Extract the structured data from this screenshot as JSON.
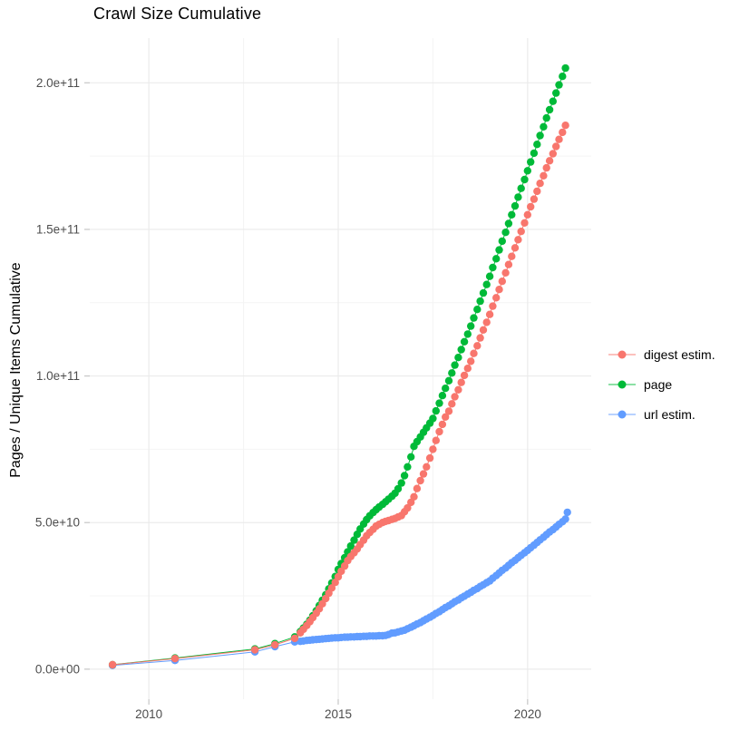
{
  "title": "Crawl Size Cumulative",
  "axes": {
    "y_label": "Pages / Unique Items Cumulative",
    "x_tick_labels": [
      "2010",
      "2015",
      "2020"
    ],
    "y_tick_labels": [
      "0.0e+00",
      "5.0e+10",
      "1.0e+11",
      "1.5e+11",
      "2.0e+11"
    ]
  },
  "legend": {
    "position": "right-center",
    "items": [
      {
        "label": "digest estim.",
        "color": "#F8766D"
      },
      {
        "label": "page",
        "color": "#00BA38"
      },
      {
        "label": "url estim.",
        "color": "#619CFF"
      }
    ]
  },
  "chart_data": {
    "type": "scatter",
    "connected": true,
    "title": "Crawl Size Cumulative",
    "xlabel": "",
    "ylabel": "Pages / Unique Items Cumulative",
    "x_unit": "year (decimal)",
    "value_unit": "1e9 items (billions); e.g. 50 = 5.0e+10",
    "xlim": [
      2008.44,
      2021.68
    ],
    "ylim_e9": [
      -10.25,
      215.25
    ],
    "x_ticks": [
      {
        "v": 2010,
        "label": "2010"
      },
      {
        "v": 2015,
        "label": "2015"
      },
      {
        "v": 2020,
        "label": "2020"
      }
    ],
    "y_ticks": [
      {
        "v": 0,
        "label": "0.0e+00"
      },
      {
        "v": 50,
        "label": "5.0e+10"
      },
      {
        "v": 100,
        "label": "1.0e+11"
      },
      {
        "v": 150,
        "label": "1.5e+11"
      },
      {
        "v": 200,
        "label": "2.0e+11"
      }
    ],
    "x_minor": [
      2012.5,
      2017.5
    ],
    "y_minor": [
      25,
      75,
      125,
      175
    ],
    "grid": true,
    "series": [
      {
        "name": "url estim.",
        "color": "#619CFF",
        "points": [
          [
            2009.04,
            1.3
          ],
          [
            2010.69,
            3.0
          ],
          [
            2012.8,
            5.9
          ],
          [
            2013.33,
            7.7
          ],
          [
            2013.85,
            9.3
          ],
          [
            2014.0,
            9.5
          ],
          [
            2014.08,
            9.6
          ],
          [
            2014.17,
            9.8
          ],
          [
            2014.25,
            9.9
          ],
          [
            2014.33,
            10.0
          ],
          [
            2014.42,
            10.1
          ],
          [
            2014.5,
            10.2
          ],
          [
            2014.58,
            10.3
          ],
          [
            2014.67,
            10.4
          ],
          [
            2014.75,
            10.5
          ],
          [
            2014.83,
            10.6
          ],
          [
            2014.92,
            10.7
          ],
          [
            2015.0,
            10.7
          ],
          [
            2015.08,
            10.8
          ],
          [
            2015.17,
            10.9
          ],
          [
            2015.25,
            10.9
          ],
          [
            2015.33,
            11.0
          ],
          [
            2015.42,
            11.0
          ],
          [
            2015.5,
            11.1
          ],
          [
            2015.58,
            11.1
          ],
          [
            2015.67,
            11.2
          ],
          [
            2015.75,
            11.2
          ],
          [
            2015.83,
            11.3
          ],
          [
            2015.92,
            11.3
          ],
          [
            2016.0,
            11.3
          ],
          [
            2016.08,
            11.4
          ],
          [
            2016.17,
            11.4
          ],
          [
            2016.25,
            11.5
          ],
          [
            2016.33,
            11.8
          ],
          [
            2016.42,
            12.3
          ],
          [
            2016.5,
            12.4
          ],
          [
            2016.58,
            12.7
          ],
          [
            2016.67,
            13.0
          ],
          [
            2016.75,
            13.3
          ],
          [
            2016.83,
            13.8
          ],
          [
            2016.92,
            14.3
          ],
          [
            2017.0,
            14.8
          ],
          [
            2017.08,
            15.4
          ],
          [
            2017.17,
            15.9
          ],
          [
            2017.25,
            16.5
          ],
          [
            2017.33,
            17.1
          ],
          [
            2017.42,
            17.7
          ],
          [
            2017.5,
            18.3
          ],
          [
            2017.58,
            19.0
          ],
          [
            2017.67,
            19.6
          ],
          [
            2017.75,
            20.3
          ],
          [
            2017.83,
            21.0
          ],
          [
            2017.92,
            21.6
          ],
          [
            2018.0,
            22.3
          ],
          [
            2018.08,
            23.0
          ],
          [
            2018.17,
            23.6
          ],
          [
            2018.25,
            24.3
          ],
          [
            2018.33,
            24.9
          ],
          [
            2018.42,
            25.6
          ],
          [
            2018.5,
            26.2
          ],
          [
            2018.58,
            26.9
          ],
          [
            2018.67,
            27.5
          ],
          [
            2018.75,
            28.2
          ],
          [
            2018.83,
            28.8
          ],
          [
            2018.92,
            29.5
          ],
          [
            2019.0,
            30.1
          ],
          [
            2019.08,
            31.0
          ],
          [
            2019.17,
            31.9
          ],
          [
            2019.25,
            32.8
          ],
          [
            2019.33,
            33.7
          ],
          [
            2019.42,
            34.5
          ],
          [
            2019.5,
            35.4
          ],
          [
            2019.58,
            36.3
          ],
          [
            2019.67,
            37.1
          ],
          [
            2019.75,
            38.0
          ],
          [
            2019.83,
            38.8
          ],
          [
            2019.92,
            39.7
          ],
          [
            2020.0,
            40.5
          ],
          [
            2020.08,
            41.4
          ],
          [
            2020.17,
            42.3
          ],
          [
            2020.25,
            43.2
          ],
          [
            2020.33,
            44.1
          ],
          [
            2020.42,
            45.0
          ],
          [
            2020.5,
            45.9
          ],
          [
            2020.58,
            46.8
          ],
          [
            2020.67,
            47.6
          ],
          [
            2020.75,
            48.5
          ],
          [
            2020.83,
            49.4
          ],
          [
            2020.92,
            50.3
          ],
          [
            2021.0,
            51.2
          ],
          [
            2021.05,
            53.5
          ]
        ]
      },
      {
        "name": "page",
        "color": "#00BA38",
        "points": [
          [
            2009.04,
            1.5
          ],
          [
            2010.69,
            3.8
          ],
          [
            2012.8,
            6.9
          ],
          [
            2013.33,
            8.7
          ],
          [
            2013.85,
            11.0
          ],
          [
            2014.0,
            12.8
          ],
          [
            2014.08,
            14.0
          ],
          [
            2014.17,
            15.3
          ],
          [
            2014.25,
            16.7
          ],
          [
            2014.33,
            18.2
          ],
          [
            2014.42,
            19.9
          ],
          [
            2014.5,
            21.7
          ],
          [
            2014.58,
            23.5
          ],
          [
            2014.67,
            25.4
          ],
          [
            2014.75,
            27.4
          ],
          [
            2014.83,
            29.4
          ],
          [
            2014.92,
            31.6
          ],
          [
            2015.0,
            34.0
          ],
          [
            2015.08,
            36.0
          ],
          [
            2015.17,
            38.0
          ],
          [
            2015.25,
            40.0
          ],
          [
            2015.33,
            42.0
          ],
          [
            2015.42,
            44.0
          ],
          [
            2015.5,
            46.0
          ],
          [
            2015.58,
            47.8
          ],
          [
            2015.67,
            49.5
          ],
          [
            2015.75,
            51.0
          ],
          [
            2015.83,
            52.3
          ],
          [
            2015.92,
            53.4
          ],
          [
            2016.0,
            54.4
          ],
          [
            2016.08,
            55.3
          ],
          [
            2016.17,
            56.2
          ],
          [
            2016.25,
            57.1
          ],
          [
            2016.33,
            58.0
          ],
          [
            2016.42,
            59.0
          ],
          [
            2016.5,
            60.0
          ],
          [
            2016.58,
            61.5
          ],
          [
            2016.67,
            63.5
          ],
          [
            2016.75,
            66.0
          ],
          [
            2016.83,
            69.0
          ],
          [
            2016.92,
            72.4
          ],
          [
            2017.0,
            76.0
          ],
          [
            2017.08,
            77.6
          ],
          [
            2017.17,
            79.2
          ],
          [
            2017.25,
            80.8
          ],
          [
            2017.33,
            82.3
          ],
          [
            2017.42,
            83.9
          ],
          [
            2017.5,
            85.5
          ],
          [
            2017.58,
            88.1
          ],
          [
            2017.67,
            90.7
          ],
          [
            2017.75,
            93.3
          ],
          [
            2017.83,
            95.8
          ],
          [
            2017.92,
            98.4
          ],
          [
            2018.0,
            101.0
          ],
          [
            2018.08,
            103.7
          ],
          [
            2018.17,
            106.3
          ],
          [
            2018.25,
            109.0
          ],
          [
            2018.33,
            111.7
          ],
          [
            2018.42,
            114.3
          ],
          [
            2018.5,
            117.0
          ],
          [
            2018.58,
            119.8
          ],
          [
            2018.67,
            122.7
          ],
          [
            2018.75,
            125.5
          ],
          [
            2018.83,
            128.3
          ],
          [
            2018.92,
            131.2
          ],
          [
            2019.0,
            134.0
          ],
          [
            2019.08,
            137.0
          ],
          [
            2019.17,
            140.0
          ],
          [
            2019.25,
            143.0
          ],
          [
            2019.33,
            146.0
          ],
          [
            2019.42,
            149.0
          ],
          [
            2019.5,
            152.0
          ],
          [
            2019.58,
            155.0
          ],
          [
            2019.67,
            158.0
          ],
          [
            2019.75,
            161.0
          ],
          [
            2019.83,
            164.0
          ],
          [
            2019.92,
            167.0
          ],
          [
            2020.0,
            170.0
          ],
          [
            2020.08,
            173.0
          ],
          [
            2020.17,
            176.0
          ],
          [
            2020.25,
            179.0
          ],
          [
            2020.33,
            182.0
          ],
          [
            2020.42,
            185.0
          ],
          [
            2020.5,
            188.0
          ],
          [
            2020.58,
            190.8
          ],
          [
            2020.67,
            193.7
          ],
          [
            2020.75,
            196.5
          ],
          [
            2020.83,
            199.3
          ],
          [
            2020.92,
            202.2
          ],
          [
            2021.0,
            205.0
          ]
        ]
      },
      {
        "name": "digest estim.",
        "color": "#F8766D",
        "points": [
          [
            2009.04,
            1.5
          ],
          [
            2010.69,
            3.6
          ],
          [
            2012.8,
            6.6
          ],
          [
            2013.33,
            8.3
          ],
          [
            2013.85,
            10.5
          ],
          [
            2014.0,
            12.4
          ],
          [
            2014.08,
            13.6
          ],
          [
            2014.17,
            14.9
          ],
          [
            2014.25,
            16.2
          ],
          [
            2014.33,
            17.6
          ],
          [
            2014.42,
            19.1
          ],
          [
            2014.5,
            20.6
          ],
          [
            2014.58,
            22.3
          ],
          [
            2014.67,
            24.1
          ],
          [
            2014.75,
            25.9
          ],
          [
            2014.83,
            27.7
          ],
          [
            2014.92,
            29.6
          ],
          [
            2015.0,
            31.5
          ],
          [
            2015.08,
            33.4
          ],
          [
            2015.17,
            35.2
          ],
          [
            2015.25,
            37.0
          ],
          [
            2015.33,
            38.4
          ],
          [
            2015.42,
            39.7
          ],
          [
            2015.5,
            41.0
          ],
          [
            2015.58,
            42.5
          ],
          [
            2015.67,
            44.0
          ],
          [
            2015.75,
            45.5
          ],
          [
            2015.83,
            46.6
          ],
          [
            2015.92,
            47.7
          ],
          [
            2016.0,
            48.8
          ],
          [
            2016.08,
            49.4
          ],
          [
            2016.17,
            50.0
          ],
          [
            2016.25,
            50.4
          ],
          [
            2016.33,
            50.7
          ],
          [
            2016.42,
            51.1
          ],
          [
            2016.5,
            51.4
          ],
          [
            2016.58,
            51.9
          ],
          [
            2016.67,
            52.4
          ],
          [
            2016.75,
            53.7
          ],
          [
            2016.83,
            55.0
          ],
          [
            2016.92,
            56.9
          ],
          [
            2017.0,
            58.8
          ],
          [
            2017.08,
            61.6
          ],
          [
            2017.17,
            64.3
          ],
          [
            2017.25,
            66.6
          ],
          [
            2017.33,
            69.0
          ],
          [
            2017.42,
            72.0
          ],
          [
            2017.5,
            75.0
          ],
          [
            2017.58,
            78.0
          ],
          [
            2017.67,
            81.0
          ],
          [
            2017.75,
            83.5
          ],
          [
            2017.83,
            86.0
          ],
          [
            2017.92,
            88.0
          ],
          [
            2018.0,
            90.5
          ],
          [
            2018.08,
            92.9
          ],
          [
            2018.17,
            95.3
          ],
          [
            2018.25,
            97.8
          ],
          [
            2018.33,
            100.2
          ],
          [
            2018.42,
            102.6
          ],
          [
            2018.5,
            105.0
          ],
          [
            2018.58,
            107.7
          ],
          [
            2018.67,
            110.3
          ],
          [
            2018.75,
            113.0
          ],
          [
            2018.83,
            115.7
          ],
          [
            2018.92,
            118.3
          ],
          [
            2019.0,
            121.0
          ],
          [
            2019.08,
            123.8
          ],
          [
            2019.17,
            126.7
          ],
          [
            2019.25,
            129.5
          ],
          [
            2019.33,
            132.3
          ],
          [
            2019.42,
            135.2
          ],
          [
            2019.5,
            138.0
          ],
          [
            2019.58,
            140.8
          ],
          [
            2019.67,
            143.7
          ],
          [
            2019.75,
            146.5
          ],
          [
            2019.83,
            149.3
          ],
          [
            2019.92,
            152.2
          ],
          [
            2020.0,
            155.0
          ],
          [
            2020.08,
            157.7
          ],
          [
            2020.17,
            160.3
          ],
          [
            2020.25,
            163.0
          ],
          [
            2020.33,
            165.7
          ],
          [
            2020.42,
            168.3
          ],
          [
            2020.5,
            171.0
          ],
          [
            2020.58,
            173.4
          ],
          [
            2020.67,
            175.8
          ],
          [
            2020.75,
            178.3
          ],
          [
            2020.83,
            180.7
          ],
          [
            2020.92,
            183.1
          ],
          [
            2021.0,
            185.5
          ]
        ]
      }
    ]
  }
}
